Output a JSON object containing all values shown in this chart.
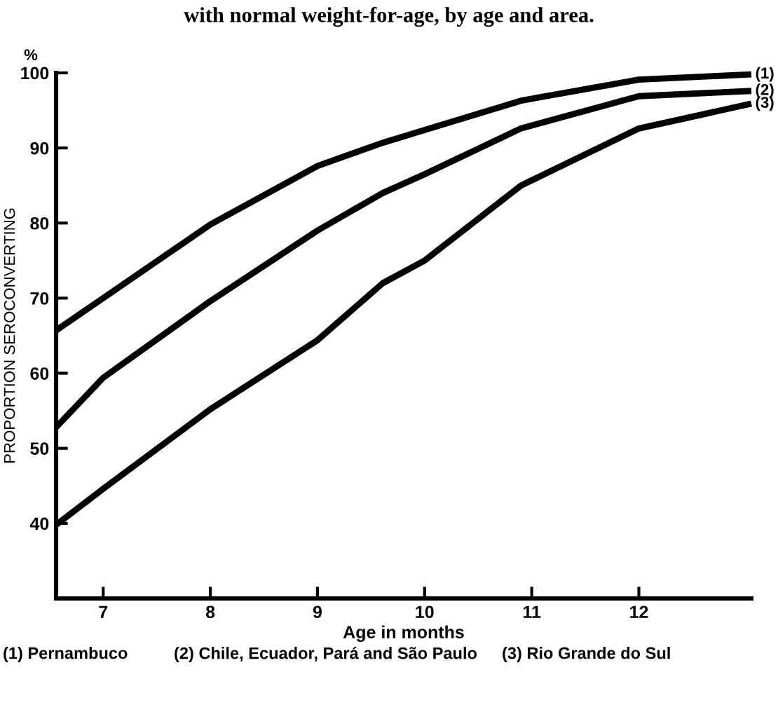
{
  "chart_data": {
    "type": "line",
    "title": "with normal weight-for-age, by age and area.",
    "xlabel": "Age in months",
    "ylabel": "PROPORTION SEROCONVERTING",
    "x": [
      6.56,
      7,
      8,
      9,
      9.61,
      10,
      10.9,
      12,
      13.05
    ],
    "series": [
      {
        "name": "(1)",
        "color": "#000000",
        "values": [
          65.7,
          70,
          79.8,
          87.6,
          90.7,
          92.4,
          96.3,
          99.1,
          99.8
        ]
      },
      {
        "name": "(2)",
        "color": "#000000",
        "values": [
          52.8,
          59.4,
          69.6,
          79,
          84,
          86.5,
          92.6,
          96.9,
          97.6
        ]
      },
      {
        "name": "(3)",
        "color": "#000000",
        "values": [
          39.8,
          44.6,
          55.2,
          64.4,
          72,
          75,
          85,
          92.6,
          95.9
        ]
      }
    ],
    "xlim": [
      6.56,
      13.05
    ],
    "ylim": [
      30,
      100
    ],
    "xticks": [
      7,
      8,
      9,
      10,
      11,
      12
    ],
    "yticks": [
      40,
      50,
      60,
      70,
      80,
      90,
      100
    ],
    "grid": false,
    "legend": false,
    "marker": "none",
    "line_style": "solid",
    "annotations": [
      "%",
      "(1) Pernambuco",
      "(2) Chile, Ecuador, Pará and São Paulo",
      "(3) Rio Grande do Sul"
    ]
  }
}
